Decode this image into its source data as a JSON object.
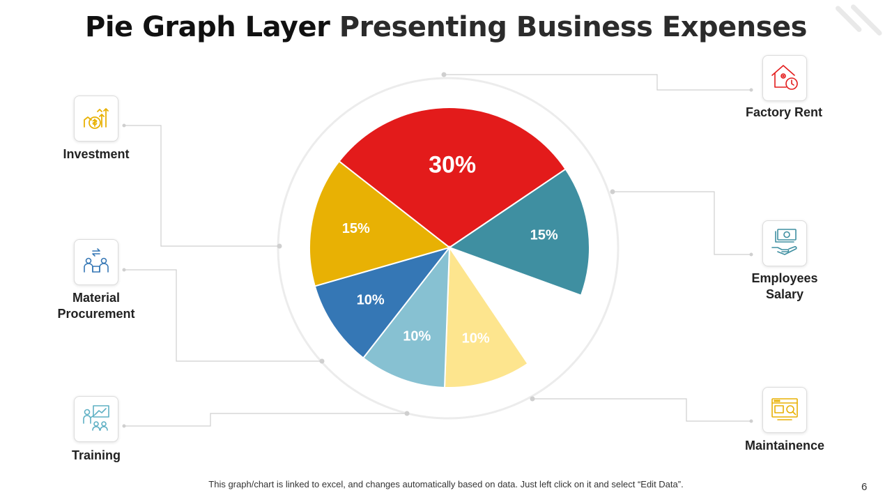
{
  "title": {
    "part1": "Pie Graph Layer",
    "part2": "Presenting Business Expenses"
  },
  "chart_data": {
    "type": "pie",
    "slices": [
      {
        "value": 30,
        "label": "30%",
        "color": "#e31b1b"
      },
      {
        "value": 15,
        "label": "15%",
        "color": "#3f8fa1"
      },
      {
        "value": 10,
        "label": "",
        "color": "#ffffff"
      },
      {
        "value": 10,
        "label": "10%",
        "color": "#fde58e"
      },
      {
        "value": 10,
        "label": "10%",
        "color": "#87c1d2"
      },
      {
        "value": 10,
        "label": "10%",
        "color": "#3577b5"
      },
      {
        "value": 15,
        "label": "15%",
        "color": "#e8b104"
      }
    ]
  },
  "categories": {
    "investment": {
      "label": "Investment",
      "icon": "money-growth-icon"
    },
    "material": {
      "line1": "Material",
      "line2": "Procurement",
      "icon": "procurement-icon"
    },
    "training": {
      "label": "Training",
      "icon": "training-presentation-icon"
    },
    "factory": {
      "label": "Factory Rent",
      "icon": "house-clock-icon"
    },
    "salary": {
      "line1": "Employees",
      "line2": "Salary",
      "icon": "cash-hand-icon"
    },
    "maintenance": {
      "label": "Maintainence",
      "icon": "maintenance-panel-icon"
    }
  },
  "colors": {
    "red": "#e31b1b",
    "gold": "#e8b104",
    "blue": "#3577b5",
    "teal": "#3f8fa1"
  },
  "footnote": "This graph/chart is linked to excel, and changes automatically based on data.  Just left click on it and select “Edit Data”.",
  "page_number": "6"
}
